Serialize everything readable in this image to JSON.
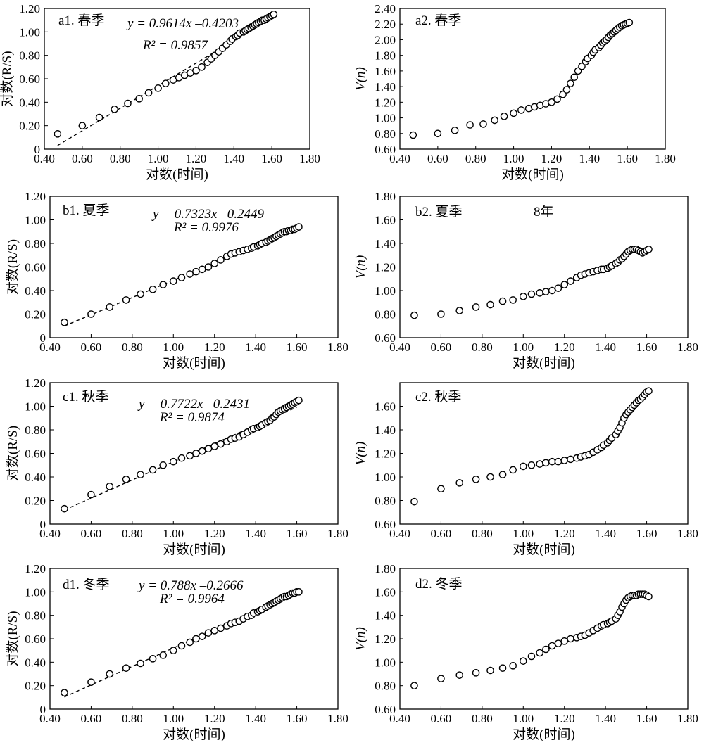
{
  "figure": {
    "xlabel": "对数(时间)",
    "ylabel_rs": "对数(R/S)",
    "ylabel_v": "V(n)"
  },
  "chart_data": [
    {
      "type": "scatter",
      "title": "a1. 春季",
      "equation": "y = 0.9614x –0.4203",
      "r2": "R² = 0.9857",
      "xlabel": "对数(时间)",
      "ylabel": "对数(R/S)",
      "xlim": [
        0.4,
        1.8
      ],
      "ylim": [
        0,
        1.2
      ],
      "xticks": [
        "0.40",
        "0.60",
        "0.80",
        "1.00",
        "1.20",
        "1.40",
        "1.60",
        "1.80"
      ],
      "yticks": [
        "0",
        "0.20",
        "0.40",
        "0.60",
        "0.80",
        "1.00",
        "1.20"
      ],
      "fit": {
        "slope": 0.9614,
        "intercept": -0.4203,
        "x": [
          0.47,
          1.4
        ]
      },
      "x": [
        0.47,
        0.6,
        0.69,
        0.77,
        0.84,
        0.9,
        0.95,
        1.0,
        1.04,
        1.08,
        1.11,
        1.14,
        1.17,
        1.2,
        1.23,
        1.26,
        1.28,
        1.3,
        1.32,
        1.34,
        1.36,
        1.38,
        1.39,
        1.41,
        1.42,
        1.43,
        1.45,
        1.46,
        1.47,
        1.48,
        1.49,
        1.5,
        1.51,
        1.52,
        1.53,
        1.54,
        1.55,
        1.56,
        1.57,
        1.58,
        1.59,
        1.6,
        1.61
      ],
      "y": [
        0.13,
        0.2,
        0.27,
        0.34,
        0.39,
        0.43,
        0.48,
        0.52,
        0.56,
        0.59,
        0.61,
        0.63,
        0.65,
        0.67,
        0.7,
        0.74,
        0.77,
        0.8,
        0.83,
        0.86,
        0.89,
        0.92,
        0.94,
        0.96,
        0.97,
        0.99,
        1.0,
        1.01,
        1.02,
        1.03,
        1.04,
        1.05,
        1.06,
        1.07,
        1.08,
        1.09,
        1.1,
        1.1,
        1.11,
        1.12,
        1.13,
        1.14,
        1.15
      ]
    },
    {
      "type": "scatter",
      "title": "a2. 春季",
      "xlabel": "对数(时间)",
      "ylabel": "V(n)",
      "xlim": [
        0.4,
        1.8
      ],
      "ylim": [
        0.6,
        2.4
      ],
      "xticks": [
        "0.40",
        "0.60",
        "0.80",
        "1.00",
        "1.20",
        "1.40",
        "1.60",
        "1.80"
      ],
      "yticks": [
        "0.60",
        "0.80",
        "1.00",
        "1.20",
        "1.40",
        "1.60",
        "1.80",
        "2.00",
        "2.20",
        "2.40"
      ],
      "x": [
        0.47,
        0.6,
        0.69,
        0.77,
        0.84,
        0.9,
        0.95,
        1.0,
        1.04,
        1.08,
        1.11,
        1.14,
        1.17,
        1.2,
        1.23,
        1.26,
        1.28,
        1.3,
        1.32,
        1.34,
        1.36,
        1.38,
        1.39,
        1.41,
        1.42,
        1.43,
        1.45,
        1.46,
        1.47,
        1.48,
        1.49,
        1.5,
        1.51,
        1.52,
        1.53,
        1.54,
        1.55,
        1.56,
        1.57,
        1.58,
        1.59,
        1.6,
        1.61
      ],
      "y": [
        0.78,
        0.8,
        0.84,
        0.91,
        0.92,
        0.97,
        1.02,
        1.06,
        1.1,
        1.12,
        1.14,
        1.16,
        1.18,
        1.2,
        1.24,
        1.3,
        1.36,
        1.44,
        1.52,
        1.6,
        1.66,
        1.72,
        1.76,
        1.8,
        1.84,
        1.87,
        1.9,
        1.93,
        1.96,
        1.98,
        2.0,
        2.03,
        2.06,
        2.08,
        2.1,
        2.12,
        2.14,
        2.16,
        2.18,
        2.19,
        2.2,
        2.21,
        2.22
      ]
    },
    {
      "type": "scatter",
      "title": "b1. 夏季",
      "equation": "y = 0.7323x –0.2449",
      "r2": "R² = 0.9976",
      "xlabel": "对数(时间)",
      "ylabel": "对数(R/S)",
      "xlim": [
        0.4,
        1.8
      ],
      "ylim": [
        0,
        1.2
      ],
      "xticks": [
        "0.40",
        "0.60",
        "0.80",
        "1.00",
        "1.20",
        "1.40",
        "1.60",
        "1.80"
      ],
      "yticks": [
        "0",
        "0.20",
        "0.40",
        "0.60",
        "0.80",
        "1.00",
        "1.20"
      ],
      "fit": {
        "slope": 0.7323,
        "intercept": -0.2449,
        "x": [
          0.47,
          1.61
        ]
      },
      "x": [
        0.47,
        0.6,
        0.69,
        0.77,
        0.84,
        0.9,
        0.95,
        1.0,
        1.04,
        1.08,
        1.11,
        1.14,
        1.17,
        1.2,
        1.23,
        1.26,
        1.28,
        1.3,
        1.32,
        1.34,
        1.36,
        1.38,
        1.39,
        1.41,
        1.42,
        1.43,
        1.45,
        1.46,
        1.47,
        1.48,
        1.49,
        1.5,
        1.51,
        1.52,
        1.53,
        1.54,
        1.55,
        1.56,
        1.57,
        1.58,
        1.59,
        1.6,
        1.61
      ],
      "y": [
        0.13,
        0.2,
        0.26,
        0.32,
        0.37,
        0.41,
        0.45,
        0.48,
        0.51,
        0.54,
        0.56,
        0.58,
        0.6,
        0.63,
        0.66,
        0.69,
        0.71,
        0.72,
        0.73,
        0.74,
        0.75,
        0.76,
        0.77,
        0.78,
        0.79,
        0.8,
        0.81,
        0.82,
        0.83,
        0.84,
        0.85,
        0.86,
        0.87,
        0.88,
        0.89,
        0.9,
        0.9,
        0.91,
        0.91,
        0.92,
        0.92,
        0.93,
        0.94
      ]
    },
    {
      "type": "scatter",
      "title": "b2. 夏季",
      "annotation": "8年",
      "xlabel": "对数(时间)",
      "ylabel": "V(n)",
      "xlim": [
        0.4,
        1.8
      ],
      "ylim": [
        0.6,
        1.8
      ],
      "xticks": [
        "0.40",
        "0.60",
        "0.80",
        "1.00",
        "1.20",
        "1.40",
        "1.60",
        "1.80"
      ],
      "yticks": [
        "0.60",
        "0.80",
        "1.00",
        "1.20",
        "1.40",
        "1.60",
        "1.80"
      ],
      "x": [
        0.47,
        0.6,
        0.69,
        0.77,
        0.84,
        0.9,
        0.95,
        1.0,
        1.04,
        1.08,
        1.11,
        1.14,
        1.17,
        1.2,
        1.23,
        1.26,
        1.28,
        1.3,
        1.32,
        1.34,
        1.36,
        1.38,
        1.39,
        1.41,
        1.42,
        1.43,
        1.45,
        1.46,
        1.47,
        1.48,
        1.49,
        1.5,
        1.51,
        1.52,
        1.53,
        1.54,
        1.55,
        1.56,
        1.57,
        1.58,
        1.59,
        1.6,
        1.61
      ],
      "y": [
        0.79,
        0.8,
        0.83,
        0.86,
        0.88,
        0.91,
        0.92,
        0.95,
        0.97,
        0.98,
        0.99,
        1.0,
        1.02,
        1.05,
        1.08,
        1.11,
        1.13,
        1.14,
        1.15,
        1.16,
        1.17,
        1.18,
        1.18,
        1.19,
        1.2,
        1.21,
        1.23,
        1.24,
        1.26,
        1.27,
        1.29,
        1.31,
        1.33,
        1.34,
        1.35,
        1.35,
        1.35,
        1.34,
        1.33,
        1.32,
        1.33,
        1.34,
        1.35
      ]
    },
    {
      "type": "scatter",
      "title": "c1. 秋季",
      "equation": "y = 0.7722x –0.2431",
      "r2": "R² = 0.9874",
      "xlabel": "对数(时间)",
      "ylabel": "对数(R/S)",
      "xlim": [
        0.4,
        1.8
      ],
      "ylim": [
        0,
        1.2
      ],
      "xticks": [
        "0.40",
        "0.60",
        "0.80",
        "1.00",
        "1.20",
        "1.40",
        "1.60",
        "1.80"
      ],
      "yticks": [
        "0",
        "0.20",
        "0.40",
        "0.60",
        "0.80",
        "1.00",
        "1.20"
      ],
      "fit": {
        "slope": 0.7722,
        "intercept": -0.2431,
        "x": [
          0.47,
          1.6
        ]
      },
      "x": [
        0.47,
        0.6,
        0.69,
        0.77,
        0.84,
        0.9,
        0.95,
        1.0,
        1.04,
        1.08,
        1.11,
        1.14,
        1.17,
        1.2,
        1.23,
        1.26,
        1.28,
        1.3,
        1.32,
        1.34,
        1.36,
        1.38,
        1.39,
        1.41,
        1.42,
        1.43,
        1.45,
        1.46,
        1.47,
        1.48,
        1.49,
        1.5,
        1.51,
        1.52,
        1.53,
        1.54,
        1.55,
        1.56,
        1.57,
        1.58,
        1.59,
        1.6,
        1.61
      ],
      "y": [
        0.13,
        0.25,
        0.32,
        0.38,
        0.42,
        0.46,
        0.5,
        0.53,
        0.56,
        0.58,
        0.6,
        0.62,
        0.64,
        0.66,
        0.68,
        0.7,
        0.72,
        0.73,
        0.74,
        0.76,
        0.78,
        0.8,
        0.81,
        0.82,
        0.83,
        0.84,
        0.86,
        0.87,
        0.88,
        0.9,
        0.91,
        0.93,
        0.95,
        0.96,
        0.97,
        0.98,
        0.99,
        1.0,
        1.01,
        1.02,
        1.03,
        1.04,
        1.05
      ]
    },
    {
      "type": "scatter",
      "title": "c2. 秋季",
      "xlabel": "对数(时间)",
      "ylabel": "V(n)",
      "xlim": [
        0.4,
        1.8
      ],
      "ylim": [
        0.6,
        1.8
      ],
      "xticks": [
        "0.40",
        "0.60",
        "0.80",
        "1.00",
        "1.20",
        "1.40",
        "1.60",
        "1.80"
      ],
      "yticks": [
        "0.60",
        "0.80",
        "1.00",
        "1.20",
        "1.40",
        "1.60"
      ],
      "x": [
        0.47,
        0.6,
        0.69,
        0.77,
        0.84,
        0.9,
        0.95,
        1.0,
        1.04,
        1.08,
        1.11,
        1.14,
        1.17,
        1.2,
        1.23,
        1.26,
        1.28,
        1.3,
        1.32,
        1.34,
        1.36,
        1.38,
        1.39,
        1.41,
        1.42,
        1.43,
        1.45,
        1.46,
        1.47,
        1.48,
        1.49,
        1.5,
        1.51,
        1.52,
        1.53,
        1.54,
        1.55,
        1.56,
        1.57,
        1.58,
        1.59,
        1.6,
        1.61
      ],
      "y": [
        0.79,
        0.9,
        0.95,
        0.98,
        1.0,
        1.02,
        1.06,
        1.09,
        1.1,
        1.11,
        1.12,
        1.13,
        1.13,
        1.14,
        1.15,
        1.16,
        1.17,
        1.18,
        1.19,
        1.21,
        1.23,
        1.25,
        1.27,
        1.29,
        1.31,
        1.33,
        1.36,
        1.39,
        1.42,
        1.46,
        1.5,
        1.53,
        1.55,
        1.57,
        1.59,
        1.61,
        1.63,
        1.65,
        1.66,
        1.68,
        1.7,
        1.72,
        1.73
      ]
    },
    {
      "type": "scatter",
      "title": "d1. 冬季",
      "equation": "y = 0.788x –0.2666",
      "r2": "R² = 0.9964",
      "xlabel": "对数(时间)",
      "ylabel": "对数(R/S)",
      "xlim": [
        0.4,
        1.8
      ],
      "ylim": [
        0,
        1.2
      ],
      "xticks": [
        "0.40",
        "0.60",
        "0.80",
        "1.00",
        "1.20",
        "1.40",
        "1.60",
        "1.80"
      ],
      "yticks": [
        "0",
        "0.20",
        "0.40",
        "0.60",
        "0.80",
        "1.00",
        "1.20"
      ],
      "fit": {
        "slope": 0.788,
        "intercept": -0.2666,
        "x": [
          0.47,
          1.6
        ]
      },
      "x": [
        0.47,
        0.6,
        0.69,
        0.77,
        0.84,
        0.9,
        0.95,
        1.0,
        1.04,
        1.08,
        1.11,
        1.14,
        1.17,
        1.2,
        1.23,
        1.26,
        1.28,
        1.3,
        1.32,
        1.34,
        1.36,
        1.38,
        1.39,
        1.41,
        1.42,
        1.43,
        1.45,
        1.46,
        1.47,
        1.48,
        1.49,
        1.5,
        1.51,
        1.52,
        1.53,
        1.54,
        1.55,
        1.56,
        1.57,
        1.58,
        1.59,
        1.6,
        1.61
      ],
      "y": [
        0.14,
        0.23,
        0.3,
        0.35,
        0.39,
        0.43,
        0.46,
        0.5,
        0.54,
        0.57,
        0.6,
        0.62,
        0.65,
        0.67,
        0.69,
        0.71,
        0.73,
        0.74,
        0.75,
        0.77,
        0.79,
        0.8,
        0.82,
        0.83,
        0.84,
        0.85,
        0.87,
        0.88,
        0.89,
        0.9,
        0.91,
        0.92,
        0.93,
        0.94,
        0.95,
        0.96,
        0.96,
        0.97,
        0.98,
        0.99,
        0.99,
        1.0,
        1.0
      ]
    },
    {
      "type": "scatter",
      "title": "d2. 冬季",
      "xlabel": "对数(时间)",
      "ylabel": "V(n)",
      "xlim": [
        0.4,
        1.8
      ],
      "ylim": [
        0.6,
        1.8
      ],
      "xticks": [
        "0.40",
        "0.60",
        "0.80",
        "1.00",
        "1.20",
        "1.40",
        "1.60",
        "1.80"
      ],
      "yticks": [
        "0.60",
        "0.80",
        "1.00",
        "1.20",
        "1.40",
        "1.60",
        "1.80"
      ],
      "x": [
        0.47,
        0.6,
        0.69,
        0.77,
        0.84,
        0.9,
        0.95,
        1.0,
        1.04,
        1.08,
        1.11,
        1.14,
        1.17,
        1.2,
        1.23,
        1.26,
        1.28,
        1.3,
        1.32,
        1.34,
        1.36,
        1.38,
        1.39,
        1.41,
        1.42,
        1.43,
        1.45,
        1.46,
        1.47,
        1.48,
        1.49,
        1.5,
        1.51,
        1.52,
        1.53,
        1.54,
        1.55,
        1.56,
        1.57,
        1.58,
        1.59,
        1.6,
        1.61
      ],
      "y": [
        0.8,
        0.86,
        0.89,
        0.91,
        0.93,
        0.95,
        0.97,
        1.01,
        1.05,
        1.08,
        1.11,
        1.14,
        1.16,
        1.18,
        1.2,
        1.21,
        1.22,
        1.23,
        1.25,
        1.27,
        1.29,
        1.31,
        1.32,
        1.33,
        1.34,
        1.35,
        1.37,
        1.4,
        1.43,
        1.47,
        1.5,
        1.53,
        1.55,
        1.56,
        1.57,
        1.57,
        1.57,
        1.58,
        1.58,
        1.58,
        1.58,
        1.57,
        1.56
      ]
    }
  ]
}
